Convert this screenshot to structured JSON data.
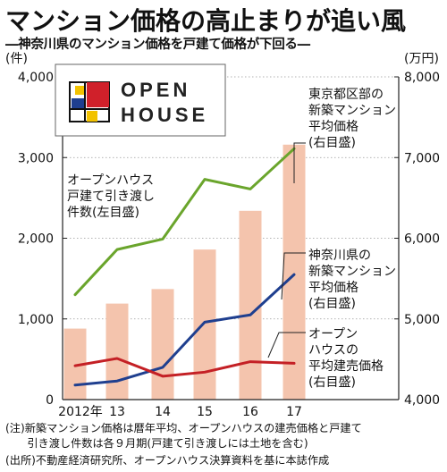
{
  "title": "マンション価格の高止まりが追い風",
  "subtitle": "―神奈川県のマンション価格を戸建て価格が下回る―",
  "chart_data": {
    "type": "bar+line",
    "categories": [
      "2012年",
      "13",
      "14",
      "15",
      "16",
      "17"
    ],
    "left_axis": {
      "unit": "(件)",
      "ylim": [
        0,
        4000
      ],
      "ticks": [
        "0",
        "1,000",
        "2,000",
        "3,000",
        "4,000"
      ]
    },
    "right_axis": {
      "unit": "(万円)",
      "ylim": [
        4000,
        8000
      ],
      "ticks": [
        "4,000",
        "5,000",
        "6,000",
        "7,000",
        "8,000"
      ]
    },
    "bar_series": {
      "name_lines": [
        "オープンハウス",
        "戸建て引き渡し",
        "件数(左目盛)"
      ],
      "color": "#f4c4ad",
      "values": [
        880,
        1190,
        1370,
        1860,
        2340,
        3160
      ]
    },
    "line_series": [
      {
        "name_lines": [
          "東京都区部の",
          "新築マンション",
          "平均価格",
          "(右目盛)"
        ],
        "color": "#6aa52c",
        "values": [
          5300,
          5860,
          5990,
          6730,
          6610,
          7110
        ]
      },
      {
        "name_lines": [
          "神奈川県の",
          "新築マンション",
          "平均価格",
          "(右目盛)"
        ],
        "color": "#1f3f8f",
        "values": [
          4180,
          4230,
          4400,
          4960,
          5050,
          5550
        ]
      },
      {
        "name_lines": [
          "オープン",
          "ハウスの",
          "平均建売価格",
          "(右目盛)"
        ],
        "color": "#c42025",
        "values": [
          4420,
          4510,
          4290,
          4340,
          4470,
          4450
        ]
      }
    ]
  },
  "logo": {
    "line1": "OPEN",
    "line2": "HOUSE"
  },
  "notes": [
    "(注)新築マンション価格は暦年平均、オープンハウスの建売価格と戸建て",
    "　　引き渡し件数は各９月期(戸建て引き渡しには土地を含む)",
    "(出所)不動産経済研究所、オープンハウス決算資料を基に本誌作成"
  ],
  "colors": {
    "axis": "#222222",
    "grid": "#999999"
  }
}
